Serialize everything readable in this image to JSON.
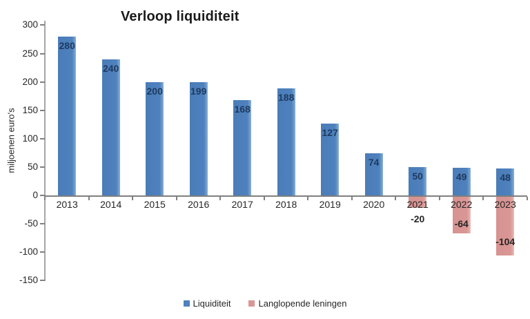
{
  "chart_data": {
    "type": "bar",
    "title": "Verloop liquiditeit",
    "xlabel": "",
    "ylabel": "miljoenen euro's",
    "categories": [
      "2013",
      "2014",
      "2015",
      "2016",
      "2017",
      "2018",
      "2019",
      "2020",
      "2021",
      "2022",
      "2023"
    ],
    "series": [
      {
        "name": "Liquiditeit",
        "color": "#4E81BD",
        "label_color": "#1E3A5F",
        "values": [
          280,
          240,
          200,
          199,
          168,
          188,
          127,
          74,
          50,
          49,
          48
        ]
      },
      {
        "name": "Langlopende leningen",
        "color": "#D99694",
        "label_color": "#262626",
        "values": [
          null,
          null,
          null,
          null,
          null,
          null,
          null,
          null,
          -20,
          -64,
          -104
        ]
      }
    ],
    "ylim": [
      -150,
      300
    ],
    "ytick_step": 50,
    "grid": false,
    "legend_position": "bottom",
    "data_labels": true,
    "background_color": "#FFFFFF"
  }
}
